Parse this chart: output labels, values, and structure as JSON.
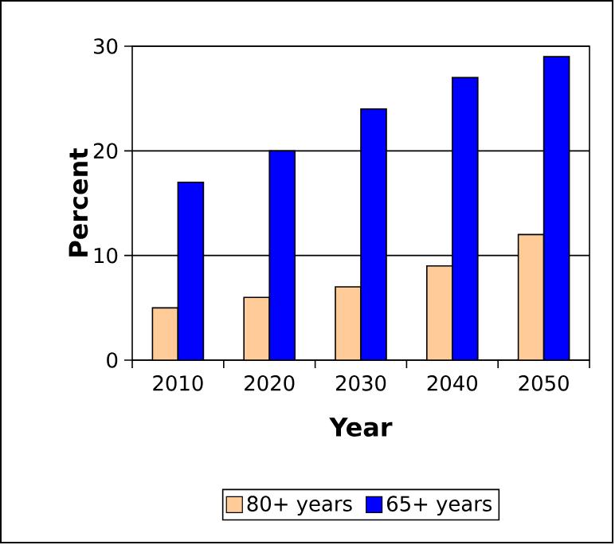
{
  "chart_data": {
    "type": "bar",
    "xlabel": "Year",
    "ylabel": "Percent",
    "categories": [
      "2010",
      "2020",
      "2030",
      "2040",
      "2050"
    ],
    "series": [
      {
        "name": "80+ years",
        "color": "#ffcc99",
        "values": [
          5,
          6,
          7,
          9,
          12
        ]
      },
      {
        "name": "65+ years",
        "color": "#0000ff",
        "values": [
          17,
          20,
          24,
          27,
          29
        ]
      }
    ],
    "ylim": [
      0,
      30
    ],
    "yticks": [
      0,
      10,
      20,
      30
    ],
    "grid": "y",
    "legend": "bottom"
  }
}
